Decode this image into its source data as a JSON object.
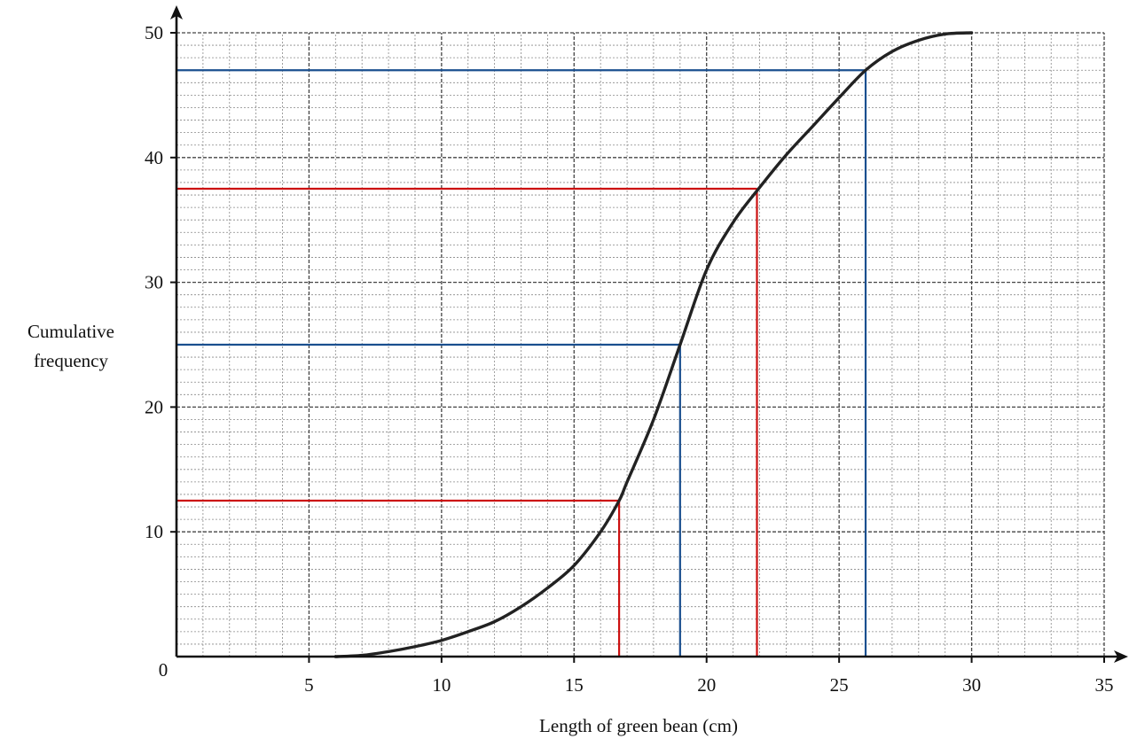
{
  "chart_data": {
    "type": "line",
    "xlabel": "Length of green bean (cm)",
    "ylabel_lines": [
      "Cumulative",
      "frequency"
    ],
    "origin_label": "0",
    "xlim": [
      0,
      35
    ],
    "ylim": [
      0,
      50
    ],
    "x_ticks": [
      5,
      10,
      15,
      20,
      25,
      30,
      35
    ],
    "y_ticks": [
      10,
      20,
      30,
      40,
      50
    ],
    "grid": true,
    "grid_minor_step": 1,
    "grid_major_x_step": 5,
    "grid_major_y_step": 10,
    "curve": {
      "color": "#222222",
      "x": [
        6,
        7,
        8,
        9,
        10,
        11,
        12,
        13,
        14,
        15,
        16,
        16.7,
        17,
        18,
        19,
        20,
        21,
        22,
        23,
        24,
        25,
        26,
        27,
        28,
        29,
        30
      ],
      "y": [
        0,
        0.1,
        0.4,
        0.8,
        1.3,
        2,
        2.8,
        4,
        5.5,
        7.3,
        10,
        12.5,
        14,
        19,
        25,
        31,
        34.8,
        37.6,
        40.2,
        42.5,
        44.8,
        47,
        48.5,
        49.4,
        49.9,
        50
      ]
    },
    "guides": [
      {
        "color": "#cc1111",
        "x": 16.7,
        "y": 12.5
      },
      {
        "color": "#1a4f8f",
        "x": 19,
        "y": 25
      },
      {
        "color": "#cc1111",
        "x": 21.9,
        "y": 37.5
      },
      {
        "color": "#1a4f8f",
        "x": 26,
        "y": 47
      }
    ]
  }
}
